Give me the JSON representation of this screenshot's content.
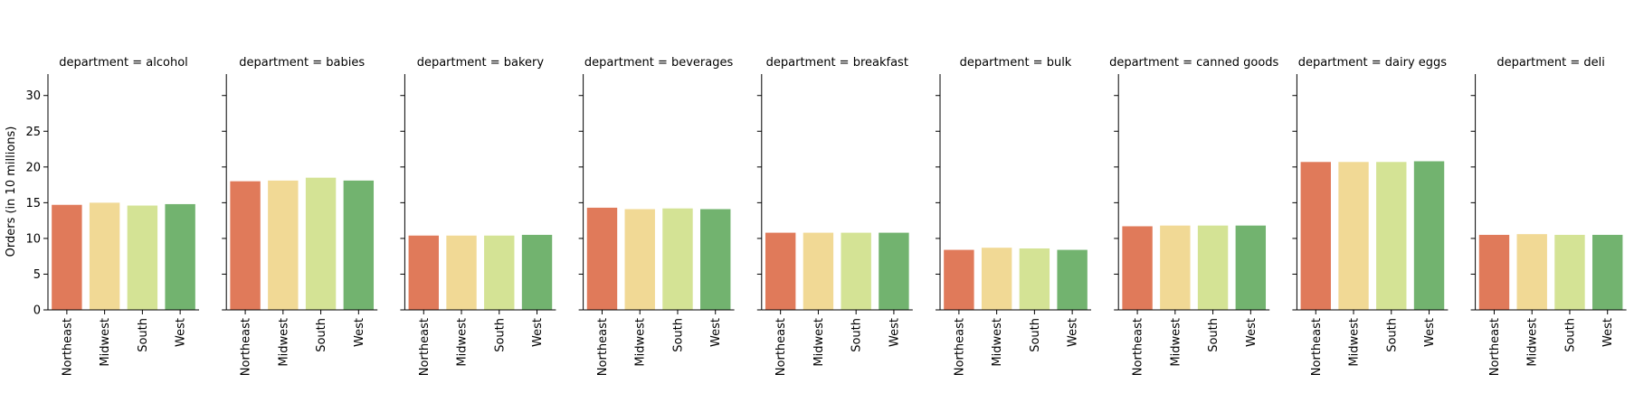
{
  "chart_data": {
    "type": "bar",
    "facet_variable": "department",
    "ylabel": "Orders (in 10 millions)",
    "ylim": [
      0,
      33
    ],
    "yticks": [
      0,
      5,
      10,
      15,
      20,
      25,
      30
    ],
    "categories": [
      "Northeast",
      "Midwest",
      "South",
      "West"
    ],
    "colors": [
      "#e07a5a",
      "#f1d995",
      "#d4e395",
      "#72b36f"
    ],
    "grid": false,
    "legend": "none",
    "panels": [
      {
        "title": "department = alcohol",
        "values": [
          14.7,
          15.0,
          14.6,
          14.8
        ]
      },
      {
        "title": "department = babies",
        "values": [
          18.0,
          18.1,
          18.5,
          18.1
        ]
      },
      {
        "title": "department = bakery",
        "values": [
          10.4,
          10.4,
          10.4,
          10.5
        ]
      },
      {
        "title": "department = beverages",
        "values": [
          14.3,
          14.1,
          14.2,
          14.1
        ]
      },
      {
        "title": "department = breakfast",
        "values": [
          10.8,
          10.8,
          10.8,
          10.8
        ]
      },
      {
        "title": "department = bulk",
        "values": [
          8.4,
          8.7,
          8.6,
          8.4
        ]
      },
      {
        "title": "department = canned goods",
        "values": [
          11.7,
          11.8,
          11.8,
          11.8
        ]
      },
      {
        "title": "department = dairy eggs",
        "values": [
          20.7,
          20.7,
          20.7,
          20.8
        ]
      },
      {
        "title": "department = deli",
        "values": [
          10.5,
          10.6,
          10.5,
          10.5
        ]
      }
    ]
  }
}
